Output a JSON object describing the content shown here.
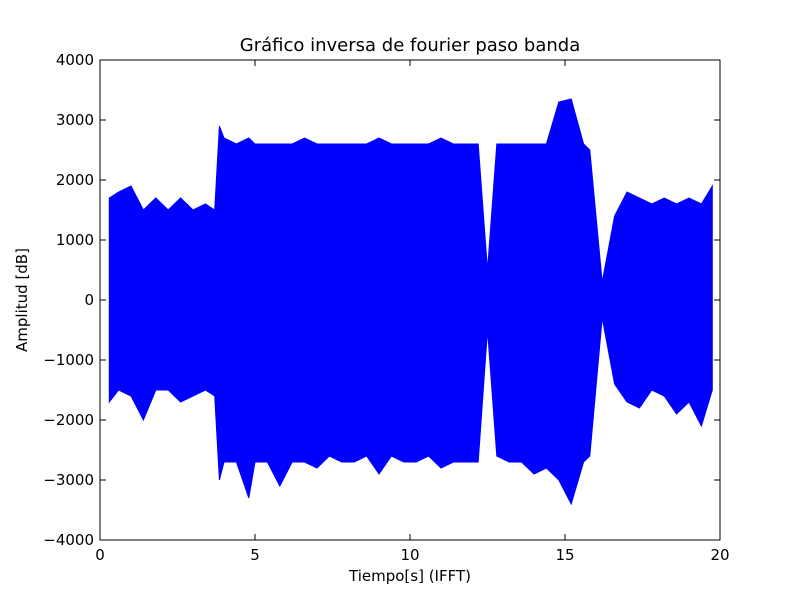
{
  "chart_data": {
    "type": "line",
    "title": "Gráfico inversa de fourier paso banda",
    "xlabel": "Tiempo[s] (IFFT)",
    "ylabel": "Amplitud [dB]",
    "xlim": [
      0,
      20
    ],
    "ylim": [
      -4000,
      4000
    ],
    "x_ticks": [
      0,
      5,
      10,
      15,
      20
    ],
    "x_tick_labels": [
      "0",
      "5",
      "10",
      "15",
      "20"
    ],
    "y_ticks": [
      4000,
      3000,
      2000,
      1000,
      0,
      -1000,
      -2000,
      -3000,
      -4000
    ],
    "y_tick_labels": [
      "4000",
      "3000",
      "2000",
      "1000",
      "0",
      "−1000",
      "−2000",
      "−3000",
      "−4000"
    ],
    "grid": false,
    "series": [
      {
        "color": "#0000ff",
        "x": [
          0.3,
          0.6,
          1.0,
          1.4,
          1.8,
          2.2,
          2.6,
          3.0,
          3.4,
          3.7,
          3.85,
          4.0,
          4.4,
          4.8,
          5.0,
          5.4,
          5.8,
          6.2,
          6.6,
          7.0,
          7.4,
          7.8,
          8.2,
          8.6,
          9.0,
          9.4,
          9.8,
          10.2,
          10.6,
          11.0,
          11.4,
          11.8,
          12.2,
          12.5,
          12.8,
          13.2,
          13.6,
          14.0,
          14.4,
          14.8,
          15.2,
          15.6,
          15.8,
          16.2,
          16.6,
          17.0,
          17.4,
          17.8,
          18.2,
          18.6,
          19.0,
          19.4,
          19.75
        ],
        "y_max": [
          1700,
          1800,
          1900,
          1500,
          1700,
          1500,
          1700,
          1500,
          1600,
          1500,
          2900,
          2700,
          2600,
          2700,
          2600,
          2600,
          2600,
          2600,
          2700,
          2600,
          2600,
          2600,
          2600,
          2600,
          2700,
          2600,
          2600,
          2600,
          2600,
          2700,
          2600,
          2600,
          2600,
          500,
          2600,
          2600,
          2600,
          2600,
          2600,
          3300,
          3350,
          2600,
          2500,
          300,
          1400,
          1800,
          1700,
          1600,
          1700,
          1600,
          1700,
          1600,
          1900
        ],
        "y_min": [
          -1700,
          -1500,
          -1600,
          -2000,
          -1500,
          -1500,
          -1700,
          -1600,
          -1500,
          -1600,
          -3000,
          -2700,
          -2700,
          -3300,
          -2700,
          -2700,
          -3100,
          -2700,
          -2700,
          -2800,
          -2600,
          -2700,
          -2700,
          -2600,
          -2900,
          -2600,
          -2700,
          -2700,
          -2600,
          -2800,
          -2700,
          -2700,
          -2700,
          -500,
          -2600,
          -2700,
          -2700,
          -2900,
          -2800,
          -3000,
          -3400,
          -2700,
          -2600,
          -300,
          -1400,
          -1700,
          -1800,
          -1500,
          -1600,
          -1900,
          -1700,
          -2100,
          -1500
        ]
      }
    ]
  }
}
